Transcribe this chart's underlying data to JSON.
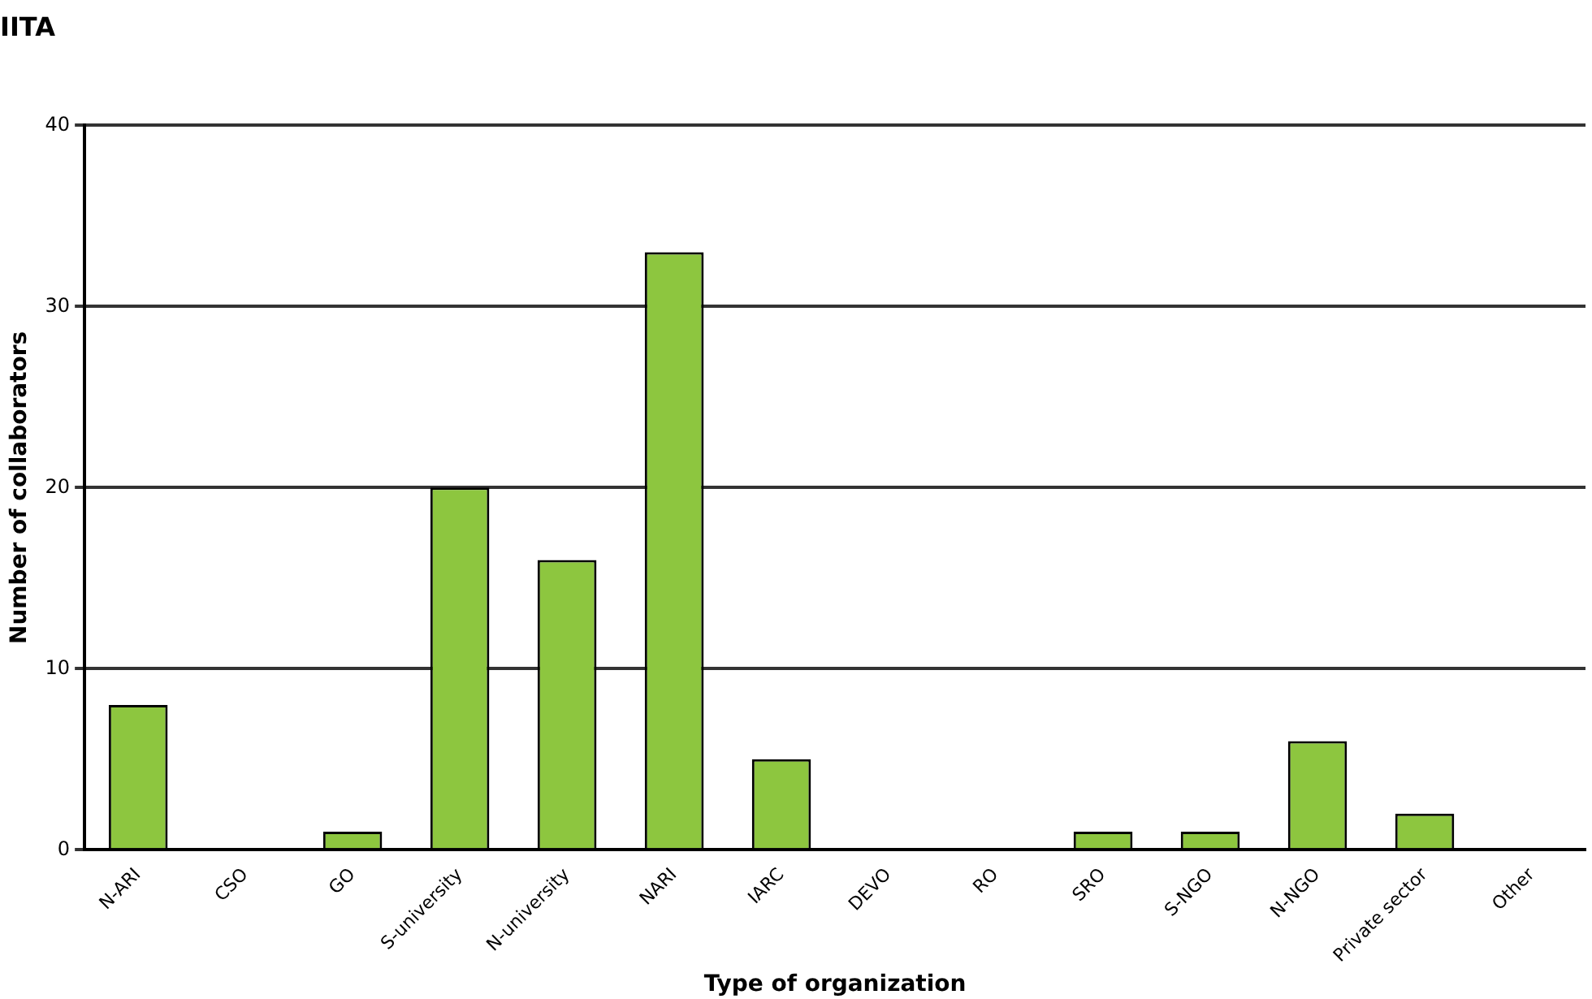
{
  "chart_data": {
    "type": "bar",
    "title": "IITA",
    "xlabel": "Type of organization",
    "ylabel": "Number of collaborators",
    "categories": [
      "N-ARI",
      "CSO",
      "GO",
      "S-university",
      "N-university",
      "NARI",
      "IARC",
      "DEVO",
      "RO",
      "SRO",
      "S-NGO",
      "N-NGO",
      "Private sector",
      "Other"
    ],
    "values": [
      8,
      0,
      1,
      20,
      16,
      33,
      5,
      0,
      0,
      1,
      1,
      6,
      2,
      0
    ],
    "color": "#8dc63f",
    "ylim": [
      0,
      40
    ],
    "yticks": [
      0,
      10,
      20,
      30,
      40
    ],
    "grid": "y",
    "legend": false
  }
}
